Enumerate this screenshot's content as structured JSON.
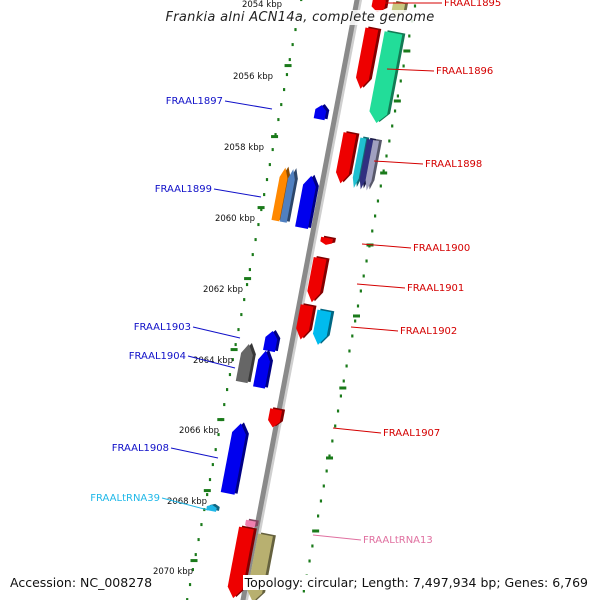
{
  "title": "Frankia alni ACN14a, complete genome",
  "footer": {
    "accession": "Accession: NC_008278",
    "topology": "Topology: circular; Length: 7,497,934 bp; Genes: 6,769"
  },
  "colors": {
    "backbone": "#8a8a8a",
    "tick": "#1a7a1a",
    "plus_label": "#d40000",
    "minus_label": "#1010c8",
    "trna_plus_label": "#e070a0",
    "trna_minus_label": "#20b8e8"
  },
  "ticks": [
    {
      "label": "2054 kbp"
    },
    {
      "label": "2056 kbp"
    },
    {
      "label": "2058 kbp"
    },
    {
      "label": "2060 kbp"
    },
    {
      "label": "2062 kbp"
    },
    {
      "label": "2064 kbp"
    },
    {
      "label": "2066 kbp"
    },
    {
      "label": "2068 kbp"
    },
    {
      "label": "2070 kbp"
    }
  ],
  "genes_plus": [
    {
      "label": "FRAAL1895"
    },
    {
      "label": "FRAAL1896"
    },
    {
      "label": "FRAAL1898"
    },
    {
      "label": "FRAAL1900"
    },
    {
      "label": "FRAAL1901"
    },
    {
      "label": "FRAAL1902"
    },
    {
      "label": "FRAAL1907"
    },
    {
      "label": "FRAALtRNA13"
    }
  ],
  "genes_minus": [
    {
      "label": "FRAAL1897"
    },
    {
      "label": "FRAAL1899"
    },
    {
      "label": "FRAAL1903"
    },
    {
      "label": "FRAAL1904"
    },
    {
      "label": "FRAAL1908"
    },
    {
      "label": "FRAALtRNA39"
    }
  ]
}
